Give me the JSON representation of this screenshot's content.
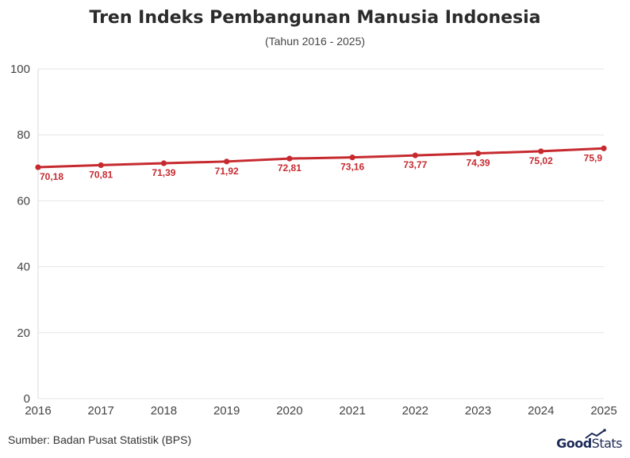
{
  "chart_data": {
    "type": "line",
    "title": "Tren Indeks Pembangunan Manusia Indonesia",
    "subtitle": "(Tahun 2016 - 2025)",
    "x": [
      "2016",
      "2017",
      "2018",
      "2019",
      "2020",
      "2021",
      "2022",
      "2023",
      "2024",
      "2025"
    ],
    "series": [
      {
        "values": [
          70.18,
          70.81,
          71.39,
          71.92,
          72.81,
          73.16,
          73.77,
          74.39,
          75.02,
          75.9
        ],
        "labels": [
          "70,18",
          "70,81",
          "71,39",
          "71,92",
          "72,81",
          "73,16",
          "73,77",
          "74,39",
          "75,02",
          "75,9"
        ]
      }
    ],
    "ylim": [
      0,
      100
    ],
    "yticks": [
      "0",
      "20",
      "40",
      "60",
      "80",
      "100"
    ],
    "grid": true,
    "line_color": "#c62a2f"
  },
  "footer": {
    "source": "Sumber: Badan Pusat Statistik (BPS)",
    "logo_good": "Good",
    "logo_stats": "Stats"
  }
}
